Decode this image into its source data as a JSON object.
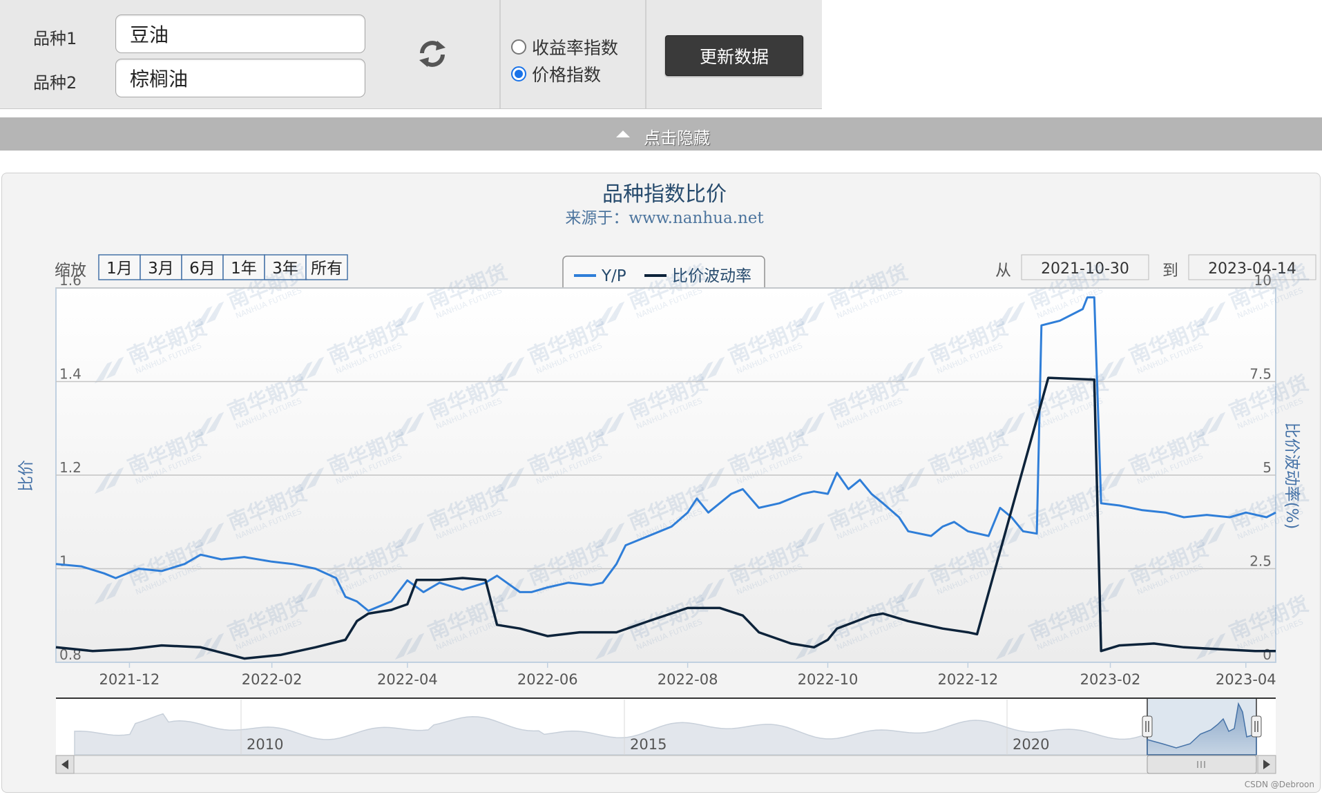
{
  "controls": {
    "variety1_label": "品种1",
    "variety1_value": "豆油",
    "variety2_label": "品种2",
    "variety2_value": "棕榈油",
    "radio_return": "收益率指数",
    "radio_price": "价格指数",
    "update_button": "更新数据",
    "hide_toggle": "点击隐藏"
  },
  "zoom": {
    "label": "缩放",
    "buttons": [
      "1月",
      "3月",
      "6月",
      "1年",
      "3年",
      "所有"
    ]
  },
  "range": {
    "from_label": "从",
    "from_value": "2021-10-30",
    "to_label": "到",
    "to_value": "2023-04-14"
  },
  "navigator_years": [
    "2010",
    "2015",
    "2020"
  ],
  "watermark": {
    "text_cn": "南华期货",
    "text_en": "NANHUA FUTURES"
  },
  "credit": "CSDN @Debroon",
  "colors": {
    "yp": "#2f7ed8",
    "vol": "#0d233a",
    "axis_text": "#4572a7"
  },
  "chart_data": {
    "type": "line",
    "title": "品种指数比价",
    "subtitle": "来源于：www.nanhua.net",
    "ylabel": "比价",
    "y2label": "比价波动率(%)",
    "xlim": [
      "2021-10-30",
      "2023-04-14"
    ],
    "ylim": [
      0.8,
      1.6
    ],
    "y2lim": [
      0,
      10
    ],
    "x_ticks": [
      "2021-12",
      "2022-02",
      "2022-04",
      "2022-06",
      "2022-08",
      "2022-10",
      "2022-12",
      "2023-02",
      "2023-04"
    ],
    "y_ticks": [
      0.8,
      1,
      1.2,
      1.4,
      1.6
    ],
    "y2_ticks": [
      0,
      2.5,
      5,
      7.5,
      10
    ],
    "grid": true,
    "legend_position": "top-center",
    "series": [
      {
        "name": "Y/P",
        "axis": "left",
        "points": [
          [
            "2021-10-30",
            1.01
          ],
          [
            "2021-11-10",
            1.005
          ],
          [
            "2021-11-20",
            0.99
          ],
          [
            "2021-11-25",
            0.98
          ],
          [
            "2021-12-05",
            1.0
          ],
          [
            "2021-12-15",
            0.995
          ],
          [
            "2021-12-25",
            1.01
          ],
          [
            "2022-01-01",
            1.03
          ],
          [
            "2022-01-10",
            1.02
          ],
          [
            "2022-01-20",
            1.025
          ],
          [
            "2022-02-01",
            1.015
          ],
          [
            "2022-02-10",
            1.01
          ],
          [
            "2022-02-20",
            1.0
          ],
          [
            "2022-03-01",
            0.98
          ],
          [
            "2022-03-05",
            0.94
          ],
          [
            "2022-03-10",
            0.93
          ],
          [
            "2022-03-15",
            0.91
          ],
          [
            "2022-03-20",
            0.92
          ],
          [
            "2022-03-25",
            0.93
          ],
          [
            "2022-04-01",
            0.975
          ],
          [
            "2022-04-08",
            0.95
          ],
          [
            "2022-04-15",
            0.97
          ],
          [
            "2022-04-25",
            0.955
          ],
          [
            "2022-05-05",
            0.97
          ],
          [
            "2022-05-10",
            0.985
          ],
          [
            "2022-05-20",
            0.95
          ],
          [
            "2022-05-25",
            0.95
          ],
          [
            "2022-06-01",
            0.96
          ],
          [
            "2022-06-10",
            0.97
          ],
          [
            "2022-06-20",
            0.965
          ],
          [
            "2022-06-25",
            0.97
          ],
          [
            "2022-07-01",
            1.01
          ],
          [
            "2022-07-05",
            1.05
          ],
          [
            "2022-07-10",
            1.06
          ],
          [
            "2022-07-20",
            1.08
          ],
          [
            "2022-07-25",
            1.09
          ],
          [
            "2022-08-01",
            1.12
          ],
          [
            "2022-08-05",
            1.15
          ],
          [
            "2022-08-10",
            1.12
          ],
          [
            "2022-08-20",
            1.16
          ],
          [
            "2022-08-25",
            1.17
          ],
          [
            "2022-09-01",
            1.13
          ],
          [
            "2022-09-10",
            1.14
          ],
          [
            "2022-09-15",
            1.15
          ],
          [
            "2022-09-20",
            1.16
          ],
          [
            "2022-09-25",
            1.165
          ],
          [
            "2022-10-01",
            1.16
          ],
          [
            "2022-10-05",
            1.205
          ],
          [
            "2022-10-10",
            1.17
          ],
          [
            "2022-10-15",
            1.19
          ],
          [
            "2022-10-20",
            1.16
          ],
          [
            "2022-10-25",
            1.14
          ],
          [
            "2022-11-01",
            1.11
          ],
          [
            "2022-11-05",
            1.08
          ],
          [
            "2022-11-15",
            1.07
          ],
          [
            "2022-11-20",
            1.09
          ],
          [
            "2022-11-25",
            1.1
          ],
          [
            "2022-12-01",
            1.08
          ],
          [
            "2022-12-10",
            1.07
          ],
          [
            "2022-12-15",
            1.13
          ],
          [
            "2022-12-20",
            1.11
          ],
          [
            "2022-12-25",
            1.08
          ],
          [
            "2022-12-31",
            1.075
          ],
          [
            "2023-01-02",
            1.52
          ],
          [
            "2023-01-10",
            1.53
          ],
          [
            "2023-01-20",
            1.555
          ],
          [
            "2023-01-22",
            1.58
          ],
          [
            "2023-01-25",
            1.58
          ],
          [
            "2023-01-28",
            1.14
          ],
          [
            "2023-02-05",
            1.135
          ],
          [
            "2023-02-15",
            1.125
          ],
          [
            "2023-02-25",
            1.12
          ],
          [
            "2023-03-05",
            1.11
          ],
          [
            "2023-03-15",
            1.115
          ],
          [
            "2023-03-25",
            1.11
          ],
          [
            "2023-04-01",
            1.12
          ],
          [
            "2023-04-10",
            1.11
          ],
          [
            "2023-04-14",
            1.12
          ]
        ]
      },
      {
        "name": "比价波动率",
        "axis": "right",
        "points": [
          [
            "2021-10-30",
            0.4
          ],
          [
            "2021-11-15",
            0.3
          ],
          [
            "2021-12-01",
            0.35
          ],
          [
            "2021-12-15",
            0.45
          ],
          [
            "2022-01-01",
            0.4
          ],
          [
            "2022-01-20",
            0.1
          ],
          [
            "2022-02-05",
            0.2
          ],
          [
            "2022-02-20",
            0.4
          ],
          [
            "2022-03-05",
            0.6
          ],
          [
            "2022-03-10",
            1.1
          ],
          [
            "2022-03-15",
            1.3
          ],
          [
            "2022-03-25",
            1.4
          ],
          [
            "2022-04-01",
            1.55
          ],
          [
            "2022-04-05",
            2.2
          ],
          [
            "2022-04-15",
            2.2
          ],
          [
            "2022-04-25",
            2.25
          ],
          [
            "2022-05-05",
            2.2
          ],
          [
            "2022-05-10",
            1.0
          ],
          [
            "2022-05-20",
            0.9
          ],
          [
            "2022-06-01",
            0.7
          ],
          [
            "2022-06-15",
            0.8
          ],
          [
            "2022-07-01",
            0.8
          ],
          [
            "2022-07-15",
            1.1
          ],
          [
            "2022-08-01",
            1.45
          ],
          [
            "2022-08-15",
            1.45
          ],
          [
            "2022-08-25",
            1.25
          ],
          [
            "2022-09-01",
            0.8
          ],
          [
            "2022-09-15",
            0.5
          ],
          [
            "2022-09-25",
            0.4
          ],
          [
            "2022-10-01",
            0.6
          ],
          [
            "2022-10-05",
            0.9
          ],
          [
            "2022-10-20",
            1.25
          ],
          [
            "2022-10-25",
            1.3
          ],
          [
            "2022-11-05",
            1.1
          ],
          [
            "2022-11-20",
            0.9
          ],
          [
            "2022-12-01",
            0.8
          ],
          [
            "2022-12-05",
            0.75
          ],
          [
            "2023-01-05",
            7.6
          ],
          [
            "2023-01-25",
            7.55
          ],
          [
            "2023-01-28",
            0.3
          ],
          [
            "2023-02-05",
            0.45
          ],
          [
            "2023-02-20",
            0.5
          ],
          [
            "2023-03-05",
            0.4
          ],
          [
            "2023-03-20",
            0.35
          ],
          [
            "2023-04-05",
            0.3
          ],
          [
            "2023-04-14",
            0.3
          ]
        ]
      }
    ]
  }
}
